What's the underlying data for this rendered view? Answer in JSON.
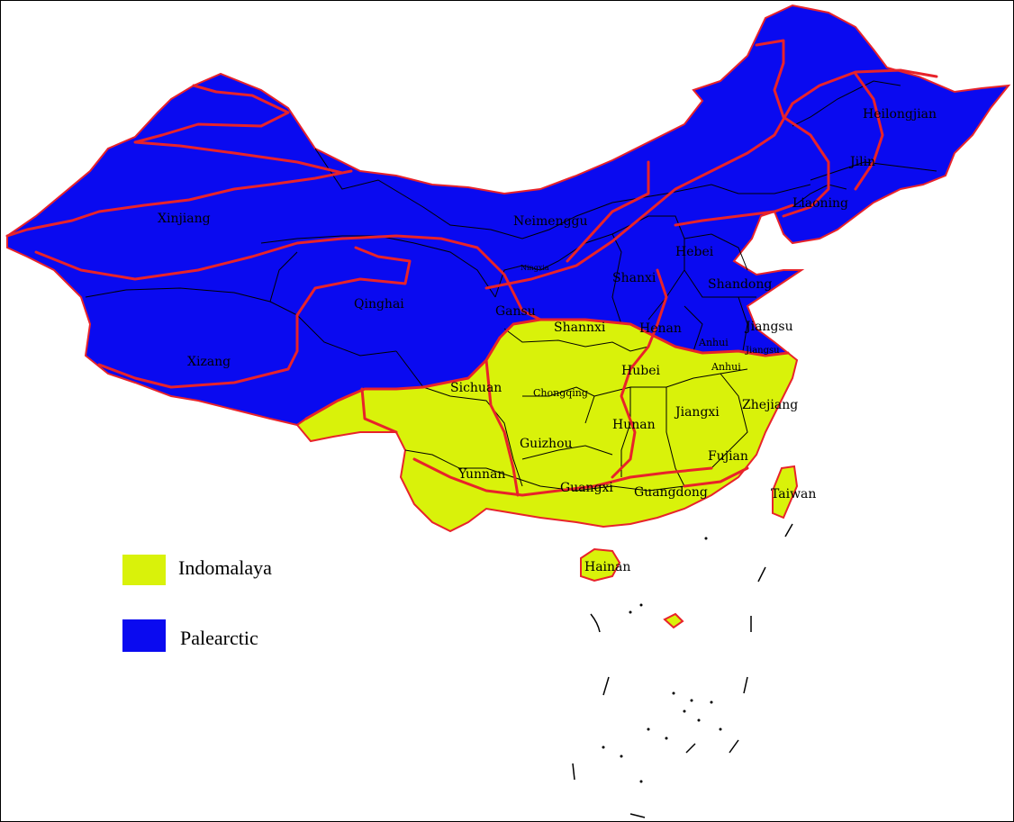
{
  "colors": {
    "indomalaya": "#d9f20a",
    "palearctic": "#0a0af0",
    "zone_boundary": "#e8232a",
    "province_boundary": "#000000"
  },
  "legend": {
    "items": [
      {
        "label": "Indomalaya",
        "color_key": "indomalaya"
      },
      {
        "label": "Palearctic",
        "color_key": "palearctic"
      }
    ]
  },
  "provinces": {
    "xinjiang": "Xinjiang",
    "neimenggu": "Neimenggu",
    "heilongjiang": "Heilongjian",
    "jilin": "Jilin",
    "liaoning": "Liaoning",
    "hebei": "Hebei",
    "shandong": "Shandong",
    "shanxi": "Shanxi",
    "ningxia": "Ningxia",
    "gansu": "Gansu",
    "qinghai": "Qinghai",
    "xizang": "Xizang",
    "shannxi": "Shannxi",
    "henan": "Henan",
    "jiangsu": "Jiangsu",
    "jiangsu_small": "Jiangsu",
    "anhui_north": "Anhui",
    "anhui_south": "Anhui",
    "hubei": "Hubei",
    "sichuan": "Sichuan",
    "chongqing": "Chongqing",
    "hunan": "Hunan",
    "jiangxi": "Jiangxi",
    "zhejiang": "Zhejiang",
    "guizhou": "Guizhou",
    "yunnan": "Yunnan",
    "fujian": "Fujian",
    "guangxi": "Guangxi",
    "guangdong": "Guangdong",
    "taiwan": "Taiwan",
    "hainan": "Hainan"
  }
}
